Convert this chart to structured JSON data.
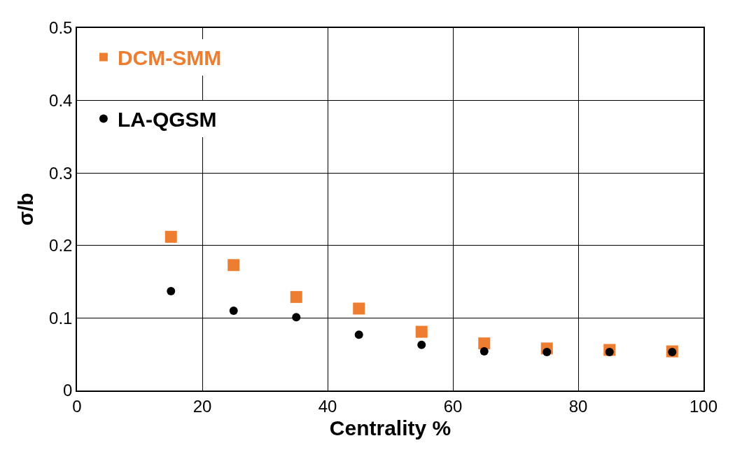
{
  "chart_data": {
    "type": "scatter",
    "xlabel": "Centrality %",
    "ylabel": "σ/b",
    "xlim": [
      0,
      100
    ],
    "xticks": [
      0,
      20,
      40,
      60,
      80,
      100
    ],
    "ylim": [
      0,
      0.5
    ],
    "yticks": [
      0,
      0.1,
      0.2,
      0.3,
      0.4,
      0.5
    ],
    "grid": true,
    "legend": "top left",
    "x": [
      15,
      25,
      35,
      45,
      55,
      65,
      75,
      85,
      95
    ],
    "series": [
      {
        "name": "DCM-SMM",
        "color": "#ed7d31",
        "marker": "square",
        "values": [
          0.212,
          0.173,
          0.129,
          0.113,
          0.081,
          0.065,
          0.058,
          0.056,
          0.054
        ]
      },
      {
        "name": "LA-QGSM",
        "color": "#000000",
        "marker": "circle",
        "values": [
          0.137,
          0.11,
          0.101,
          0.077,
          0.063,
          0.054,
          0.053,
          0.053,
          0.053
        ]
      }
    ]
  }
}
